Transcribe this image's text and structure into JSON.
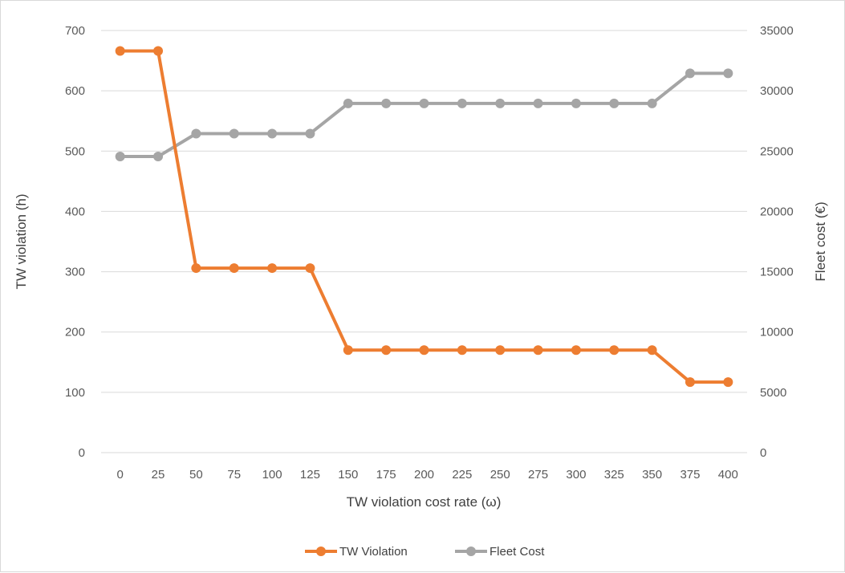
{
  "chart_data": {
    "type": "line",
    "x": [
      0,
      25,
      50,
      75,
      100,
      125,
      150,
      175,
      200,
      225,
      250,
      275,
      300,
      325,
      350,
      375,
      400
    ],
    "xlabel": "TW violation cost rate (ω)",
    "ylabel": "TW violation (h)",
    "y2label": "Fleet cost (€)",
    "ylim": [
      0,
      700
    ],
    "y2lim": [
      0,
      35000
    ],
    "yticks": [
      0,
      100,
      200,
      300,
      400,
      500,
      600,
      700
    ],
    "y2ticks": [
      0,
      5000,
      10000,
      15000,
      20000,
      25000,
      30000,
      35000
    ],
    "grid": true,
    "legend_position": "bottom",
    "series": [
      {
        "name": "TW Violation",
        "axis": "left",
        "color": "#ed7d31",
        "values": [
          666,
          666,
          306,
          306,
          306,
          306,
          170,
          170,
          170,
          170,
          170,
          170,
          170,
          170,
          170,
          117,
          117
        ]
      },
      {
        "name": "Fleet Cost",
        "axis": "right",
        "color": "#a5a5a5",
        "values": [
          24550,
          24550,
          26450,
          26450,
          26450,
          26450,
          28950,
          28950,
          28950,
          28950,
          28950,
          28950,
          28950,
          28950,
          28950,
          31450,
          31450
        ]
      }
    ]
  }
}
